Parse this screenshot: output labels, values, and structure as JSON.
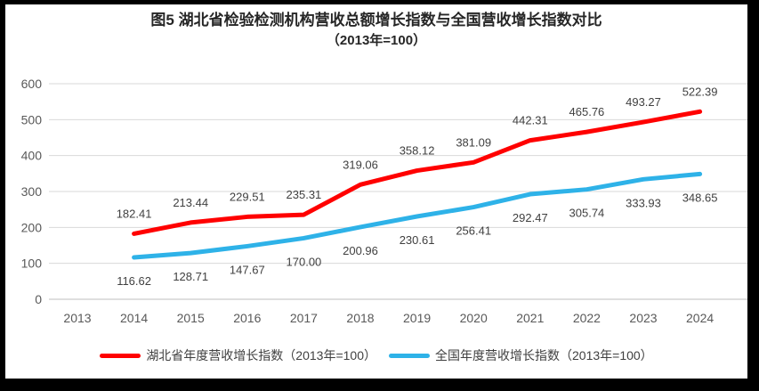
{
  "title": {
    "line1": "图5 湖北省检验检测机构营收总额增长指数与全国营收增长指数对比",
    "line2": "（2013年=100）"
  },
  "chart_data": {
    "type": "line",
    "title": "图5 湖北省检验检测机构营收总额增长指数与全国营收增长指数对比（2013年=100）",
    "categories": [
      "2013",
      "2014",
      "2015",
      "2016",
      "2017",
      "2018",
      "2019",
      "2020",
      "2021",
      "2022",
      "2023",
      "2024"
    ],
    "ylim": [
      0,
      600
    ],
    "yticks": [
      0,
      100,
      200,
      300,
      400,
      500,
      600
    ],
    "grid": true,
    "legend_position": "bottom",
    "series": [
      {
        "name": "湖北省年度营收增长指数（2013年=100）",
        "color": "#FF0000",
        "start_category": "2014",
        "values": [
          182.41,
          213.44,
          229.51,
          235.31,
          319.06,
          358.12,
          381.09,
          442.31,
          465.76,
          493.27,
          522.39
        ],
        "label_position": "above"
      },
      {
        "name": "全国年度营收增长指数（2013年=100）",
        "color": "#2EB2E8",
        "start_category": "2014",
        "values": [
          116.62,
          128.71,
          147.67,
          170.0,
          200.96,
          230.61,
          256.41,
          292.47,
          305.74,
          333.93,
          348.65
        ],
        "label_position": "below"
      }
    ],
    "colors": {
      "gridline": "#D9D9D9",
      "axis_line": "#BFBFBF",
      "tick_label": "#595959",
      "data_label": "#404040"
    }
  }
}
